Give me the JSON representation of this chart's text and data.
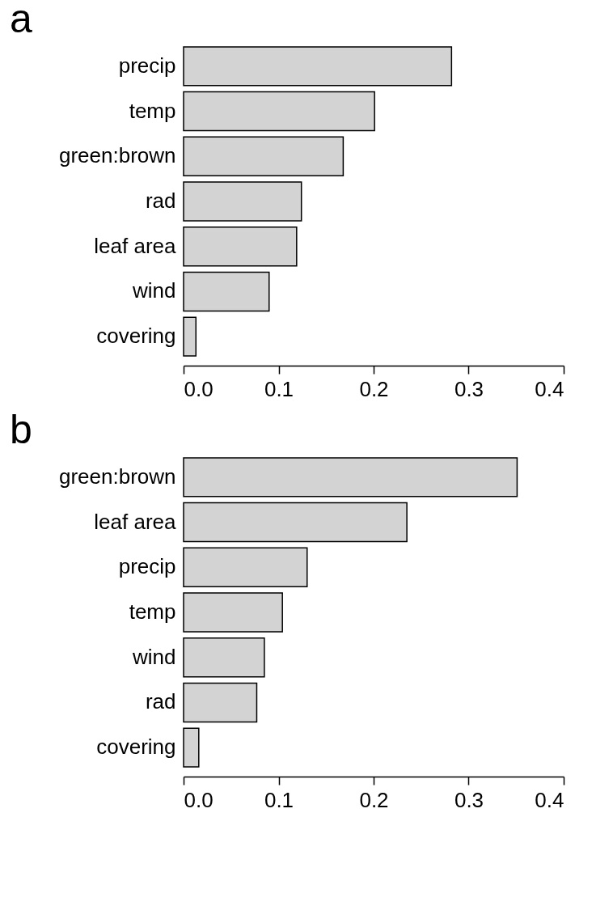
{
  "chart_data": [
    {
      "type": "bar",
      "orientation": "horizontal",
      "title": "a",
      "categories": [
        "precip",
        "temp",
        "green:brown",
        "rad",
        "leaf area",
        "wind",
        "covering"
      ],
      "values": [
        0.282,
        0.201,
        0.168,
        0.124,
        0.119,
        0.09,
        0.013
      ],
      "color": "#d3d3d3",
      "xlim": [
        0,
        0.4
      ],
      "xticks": [
        {
          "value": 0,
          "label": "0.0"
        },
        0.1,
        0.2,
        0.3,
        0.4
      ]
    },
    {
      "type": "bar",
      "orientation": "horizontal",
      "title": "b",
      "categories": [
        "green:brown",
        "leaf area",
        "precip",
        "temp",
        "wind",
        "rad",
        "covering"
      ],
      "values": [
        0.351,
        0.235,
        0.13,
        0.104,
        0.085,
        0.077,
        0.016
      ],
      "color": "#d3d3d3",
      "xlim": [
        0,
        0.4
      ],
      "xticks": [
        {
          "value": 0,
          "label": "0.0"
        },
        0.1,
        0.2,
        0.3,
        0.4
      ]
    }
  ]
}
